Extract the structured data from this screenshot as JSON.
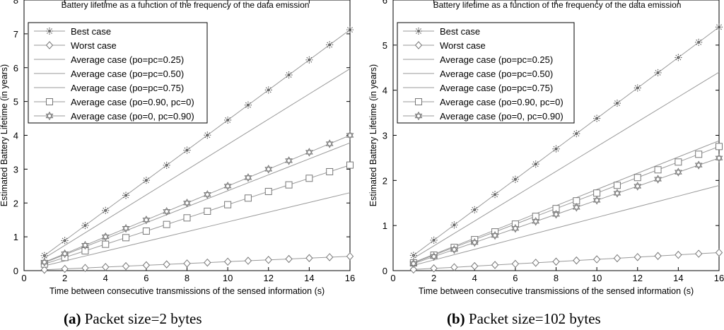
{
  "chart_data": [
    {
      "type": "line",
      "title": "Battery lifetime as a function of the frequency of the data emission",
      "xlabel": "Time between consecutive transmissions of the sensed information (s)",
      "ylabel": "Estimated Battery Lifetime (in years)",
      "xlim": [
        0,
        16
      ],
      "ylim": [
        0,
        8
      ],
      "xticks": [
        0,
        2,
        4,
        6,
        8,
        10,
        12,
        14,
        16
      ],
      "yticks": [
        0,
        1,
        2,
        3,
        4,
        5,
        6,
        7,
        8
      ],
      "caption_label": "(a)",
      "caption_text": "Packet size=2 bytes",
      "x": [
        1,
        2,
        3,
        4,
        5,
        6,
        7,
        8,
        9,
        10,
        11,
        12,
        13,
        14,
        15,
        16
      ],
      "series": [
        {
          "name": "Best case",
          "marker": "star",
          "slope": 0.445
        },
        {
          "name": "Worst case",
          "marker": "diamond",
          "slope": 0.0265
        },
        {
          "name": "Average case (po=pc=0.25)",
          "marker": "none",
          "slope": 0.373
        },
        {
          "name": "Average case (po=pc=0.50)",
          "marker": "none",
          "slope": 0.236
        },
        {
          "name": "Average case (po=pc=0.75)",
          "marker": "none",
          "slope": 0.144
        },
        {
          "name": "Average case (po=0.90, pc=0)",
          "marker": "square",
          "slope": 0.195
        },
        {
          "name": "Average case (po=0, pc=0.90)",
          "marker": "hexagram",
          "slope": 0.25
        }
      ]
    },
    {
      "type": "line",
      "title": "Battery lifetime as a function of the frequency of the data emission",
      "xlabel": "Time between consecutive transmissions of the sensed information (s)",
      "ylabel": "Estimated Battery Lifetime (in years)",
      "xlim": [
        0,
        16
      ],
      "ylim": [
        0,
        6
      ],
      "xticks": [
        0,
        2,
        4,
        6,
        8,
        10,
        12,
        14,
        16
      ],
      "yticks": [
        0,
        1,
        2,
        3,
        4,
        5,
        6
      ],
      "caption_label": "(b)",
      "caption_text": "Packet size=102 bytes",
      "x": [
        1,
        2,
        3,
        4,
        5,
        6,
        7,
        8,
        9,
        10,
        11,
        12,
        13,
        14,
        15,
        16
      ],
      "series": [
        {
          "name": "Best case",
          "marker": "star",
          "slope": 0.3375
        },
        {
          "name": "Worst case",
          "marker": "diamond",
          "slope": 0.025
        },
        {
          "name": "Average case (po=pc=0.25)",
          "marker": "none",
          "slope": 0.275
        },
        {
          "name": "Average case (po=pc=0.50)",
          "marker": "none",
          "slope": 0.18
        },
        {
          "name": "Average case (po=pc=0.75)",
          "marker": "none",
          "slope": 0.118
        },
        {
          "name": "Average case (po=0.90, pc=0)",
          "marker": "square",
          "slope": 0.172
        },
        {
          "name": "Average case (po=0, pc=0.90)",
          "marker": "hexagram",
          "slope": 0.156
        }
      ]
    }
  ]
}
